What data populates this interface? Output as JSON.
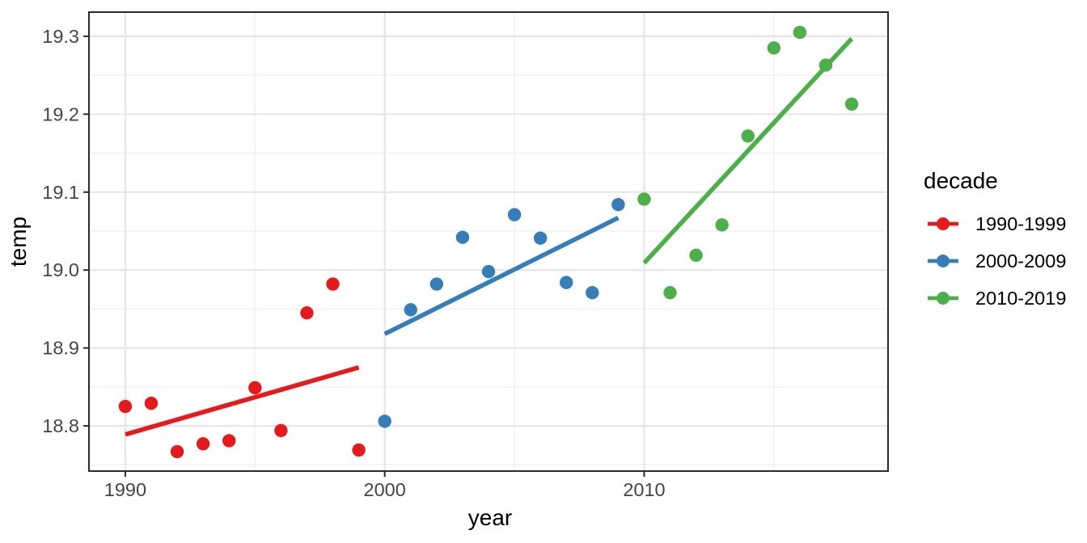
{
  "chart_data": {
    "type": "scatter",
    "title": "",
    "xlabel": "year",
    "ylabel": "temp",
    "legend_title": "decade",
    "legend_position": "right",
    "grid": "major and minor, light gray on white panel, black panel border (ggplot theme_bw style)",
    "xlim": [
      1988.6,
      2019.4
    ],
    "ylim": [
      18.742,
      19.331
    ],
    "x_ticks": [
      {
        "value": 1990,
        "label": "1990"
      },
      {
        "value": 2000,
        "label": "2000"
      },
      {
        "value": 2010,
        "label": "2010"
      }
    ],
    "x_minor_gridlines": [
      1995,
      2005,
      2015
    ],
    "y_ticks": [
      {
        "value": 18.8,
        "label": "18.8"
      },
      {
        "value": 18.9,
        "label": "18.9"
      },
      {
        "value": 19.0,
        "label": "19.0"
      },
      {
        "value": 19.1,
        "label": "19.1"
      },
      {
        "value": 19.2,
        "label": "19.2"
      },
      {
        "value": 19.3,
        "label": "19.3"
      }
    ],
    "y_minor_gridlines": [
      18.75,
      18.85,
      18.95,
      19.05,
      19.15,
      19.25
    ],
    "series": [
      {
        "name": "1990-1999",
        "color": "#E41A1C",
        "x": [
          1990,
          1991,
          1992,
          1993,
          1994,
          1995,
          1996,
          1997,
          1998,
          1999
        ],
        "y": [
          18.825,
          18.829,
          18.767,
          18.777,
          18.781,
          18.849,
          18.794,
          18.945,
          18.982,
          18.769
        ],
        "trend": {
          "x1": 1990,
          "y1": 18.789,
          "x2": 1999,
          "y2": 18.875
        }
      },
      {
        "name": "2000-2009",
        "color": "#377EB8",
        "x": [
          2000,
          2001,
          2002,
          2003,
          2004,
          2005,
          2006,
          2007,
          2008,
          2009
        ],
        "y": [
          18.806,
          18.949,
          18.982,
          19.042,
          18.998,
          19.071,
          19.041,
          18.984,
          18.971,
          19.084
        ],
        "trend": {
          "x1": 2000,
          "y1": 18.918,
          "x2": 2009,
          "y2": 19.067
        }
      },
      {
        "name": "2010-2019",
        "color": "#4DAF4A",
        "x": [
          2010,
          2011,
          2012,
          2013,
          2014,
          2015,
          2016,
          2017,
          2018
        ],
        "y": [
          19.091,
          18.971,
          19.019,
          19.058,
          19.172,
          19.285,
          19.305,
          19.263,
          19.213
        ],
        "trend": {
          "x1": 2010,
          "y1": 19.009,
          "x2": 2018,
          "y2": 19.297
        }
      }
    ]
  }
}
